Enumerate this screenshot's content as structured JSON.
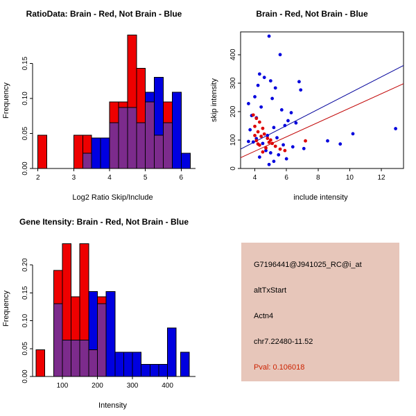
{
  "chart_data": [
    {
      "type": "bar",
      "subtype": "overlaid-histogram",
      "title": "RatioData: Brain - Red, Not Brain - Blue",
      "xlabel": "Log2 Ratio Skip/Include",
      "ylabel": "Frequency",
      "xlim": [
        1.85,
        6.4
      ],
      "ylim": [
        0,
        0.195
      ],
      "xticks": [
        2,
        3,
        4,
        5,
        6
      ],
      "xtick_labels": [
        "2",
        "3",
        "4",
        "5",
        "6"
      ],
      "yticks": [
        0,
        0.05,
        0.1,
        0.15
      ],
      "ytick_labels": [
        "0.00",
        "0.05",
        "0.10",
        "0.15"
      ],
      "bin_width": 0.25,
      "grid": false,
      "box": false,
      "overlap_color": "#7c2b8c",
      "series": [
        {
          "name": "Brain (red)",
          "color": "#ee0000",
          "bins": [
            [
              2.0,
              0.0476
            ],
            [
              3.0,
              0.0476
            ],
            [
              3.25,
              0.0476
            ],
            [
              4.0,
              0.0952
            ],
            [
              4.25,
              0.0952
            ],
            [
              4.5,
              0.1905
            ],
            [
              4.75,
              0.1429
            ],
            [
              5.0,
              0.0952
            ],
            [
              5.25,
              0.0476
            ],
            [
              5.5,
              0.0952
            ]
          ]
        },
        {
          "name": "Not Brain (blue)",
          "color": "#0000e0",
          "bins": [
            [
              3.25,
              0.0217
            ],
            [
              3.5,
              0.0435
            ],
            [
              3.75,
              0.0435
            ],
            [
              4.0,
              0.0652
            ],
            [
              4.25,
              0.087
            ],
            [
              4.5,
              0.087
            ],
            [
              4.75,
              0.0652
            ],
            [
              5.0,
              0.1087
            ],
            [
              5.25,
              0.1304
            ],
            [
              5.5,
              0.0652
            ],
            [
              5.75,
              0.1087
            ],
            [
              6.0,
              0.0217
            ]
          ]
        }
      ]
    },
    {
      "type": "scatter",
      "title": "Brain - Red, Not Brain - Blue",
      "xlabel": "include intensity",
      "ylabel": "skip intensity",
      "xlim": [
        3.1,
        13.4
      ],
      "ylim": [
        0,
        480
      ],
      "xticks": [
        4,
        6,
        8,
        10,
        12
      ],
      "xtick_labels": [
        "4",
        "6",
        "8",
        "10",
        "12"
      ],
      "yticks": [
        0,
        100,
        200,
        300,
        400
      ],
      "ytick_labels": [
        "0",
        "100",
        "200",
        "300",
        "400"
      ],
      "grid": false,
      "box": true,
      "series": [
        {
          "name": "Not Brain (blue)",
          "color": "#0000dd",
          "points": [
            [
              4.9,
              465
            ],
            [
              5.6,
              400
            ],
            [
              4.3,
              332
            ],
            [
              4.6,
              320
            ],
            [
              5.0,
              308
            ],
            [
              6.8,
              305
            ],
            [
              4.2,
              292
            ],
            [
              5.3,
              283
            ],
            [
              6.9,
              276
            ],
            [
              4.0,
              252
            ],
            [
              5.1,
              246
            ],
            [
              3.6,
              228
            ],
            [
              4.4,
              216
            ],
            [
              5.7,
              206
            ],
            [
              6.3,
              196
            ],
            [
              3.8,
              186
            ],
            [
              4.1,
              178
            ],
            [
              6.1,
              168
            ],
            [
              6.6,
              160
            ],
            [
              5.9,
              151
            ],
            [
              5.2,
              144
            ],
            [
              3.7,
              136
            ],
            [
              12.9,
              140
            ],
            [
              10.2,
              122
            ],
            [
              4.8,
              116
            ],
            [
              5.4,
              108
            ],
            [
              8.6,
              97
            ],
            [
              3.9,
              93
            ],
            [
              4.5,
              88
            ],
            [
              5.8,
              83
            ],
            [
              6.4,
              76
            ],
            [
              7.1,
              70
            ],
            [
              4.7,
              63
            ],
            [
              5.0,
              55
            ],
            [
              5.5,
              48
            ],
            [
              4.3,
              40
            ],
            [
              6.0,
              34
            ],
            [
              5.2,
              25
            ],
            [
              4.9,
              14
            ],
            [
              9.4,
              86
            ],
            [
              4.1,
              105
            ],
            [
              3.6,
              95
            ]
          ]
        },
        {
          "name": "Brain (red)",
          "color": "#dd0000",
          "points": [
            [
              3.9,
              188
            ],
            [
              4.1,
              176
            ],
            [
              4.3,
              163
            ],
            [
              4.0,
              148
            ],
            [
              4.5,
              141
            ],
            [
              4.2,
              129
            ],
            [
              4.6,
              121
            ],
            [
              4.4,
              113
            ],
            [
              4.8,
              106
            ],
            [
              4.1,
              98
            ],
            [
              4.9,
              92
            ],
            [
              5.1,
              88
            ],
            [
              4.3,
              82
            ],
            [
              5.3,
              78
            ],
            [
              4.7,
              72
            ],
            [
              5.6,
              68
            ],
            [
              5.9,
              63
            ],
            [
              7.2,
              97
            ],
            [
              4.5,
              58
            ],
            [
              4.0,
              116
            ],
            [
              5.0,
              100
            ],
            [
              4.2,
              86
            ]
          ]
        }
      ],
      "lines": [
        {
          "name": "not-brain-fit",
          "color": "#00009b",
          "from": [
            3.1,
            68
          ],
          "to": [
            13.4,
            362
          ]
        },
        {
          "name": "brain-fit",
          "color": "#c00000",
          "from": [
            3.1,
            38
          ],
          "to": [
            13.4,
            298
          ]
        }
      ]
    },
    {
      "type": "bar",
      "subtype": "overlaid-histogram",
      "title": "Gene Itensity: Brain - Red, Not Brain - Blue",
      "xlabel": "Intensity",
      "ylabel": "Frequency",
      "xlim": [
        15,
        480
      ],
      "ylim": [
        0,
        0.245
      ],
      "xticks": [
        100,
        200,
        300,
        400
      ],
      "xtick_labels": [
        "100",
        "200",
        "300",
        "400"
      ],
      "yticks": [
        0,
        0.05,
        0.1,
        0.15,
        0.2
      ],
      "ytick_labels": [
        "0.00",
        "0.05",
        "0.10",
        "0.15",
        "0.20"
      ],
      "bin_width": 25,
      "grid": false,
      "box": false,
      "overlap_color": "#7c2b8c",
      "series": [
        {
          "name": "Brain (red)",
          "color": "#ee0000",
          "bins": [
            [
              25,
              0.0476
            ],
            [
              75,
              0.1905
            ],
            [
              100,
              0.2381
            ],
            [
              125,
              0.1429
            ],
            [
              150,
              0.2381
            ],
            [
              175,
              0.0476
            ],
            [
              200,
              0.1429
            ]
          ]
        },
        {
          "name": "Not Brain (blue)",
          "color": "#0000e0",
          "bins": [
            [
              75,
              0.1304
            ],
            [
              100,
              0.0652
            ],
            [
              125,
              0.0652
            ],
            [
              150,
              0.0652
            ],
            [
              175,
              0.1522
            ],
            [
              200,
              0.1304
            ],
            [
              225,
              0.1522
            ],
            [
              250,
              0.0435
            ],
            [
              275,
              0.0435
            ],
            [
              300,
              0.0435
            ],
            [
              325,
              0.0217
            ],
            [
              350,
              0.0217
            ],
            [
              375,
              0.0217
            ],
            [
              400,
              0.087
            ],
            [
              437,
              0.0435
            ]
          ]
        }
      ]
    }
  ],
  "info_panel": {
    "bg_color": "#e7c6ba",
    "lines": [
      "G7196441@J941025_RC@i_at",
      "altTxStart",
      "Actn4",
      "chr7.22480-11.52"
    ],
    "pval": "Pval: 0.106018",
    "pval_color": "#cc2200"
  }
}
